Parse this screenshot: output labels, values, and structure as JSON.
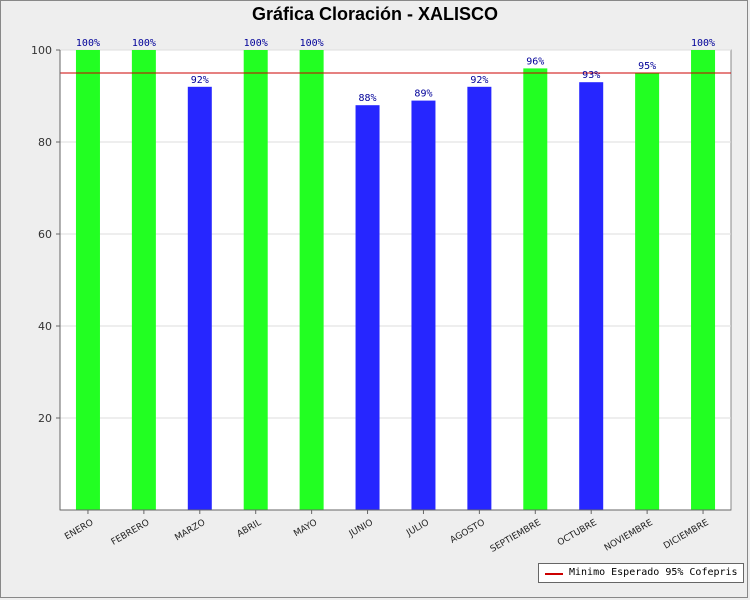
{
  "chart_data": {
    "type": "bar",
    "title": "Gráfica Cloración - XALISCO",
    "categories": [
      "ENERO",
      "FEBRERO",
      "MARZO",
      "ABRIL",
      "MAYO",
      "JUNIO",
      "JULIO",
      "AGOSTO",
      "SEPTIEMBRE",
      "OCTUBRE",
      "NOVIEMBRE",
      "DICIEMBRE"
    ],
    "values": [
      100,
      100,
      92,
      100,
      100,
      88,
      89,
      92,
      96,
      93,
      95,
      100
    ],
    "data_labels": [
      "100%",
      "100%",
      "92%",
      "100%",
      "100%",
      "88%",
      "89%",
      "92%",
      "96%",
      "93%",
      "95%",
      "100%"
    ],
    "ylim": [
      0,
      100
    ],
    "yticks": [
      20,
      40,
      60,
      80,
      100
    ],
    "threshold": {
      "value": 95,
      "label": "Minimo Esperado 95% Cofepris",
      "color": "#cc0000"
    },
    "colors": {
      "above_threshold": "#22ff22",
      "below_threshold": "#2626ff",
      "data_label": "#000099"
    },
    "legend_position": "bottom-right",
    "grid": true
  }
}
